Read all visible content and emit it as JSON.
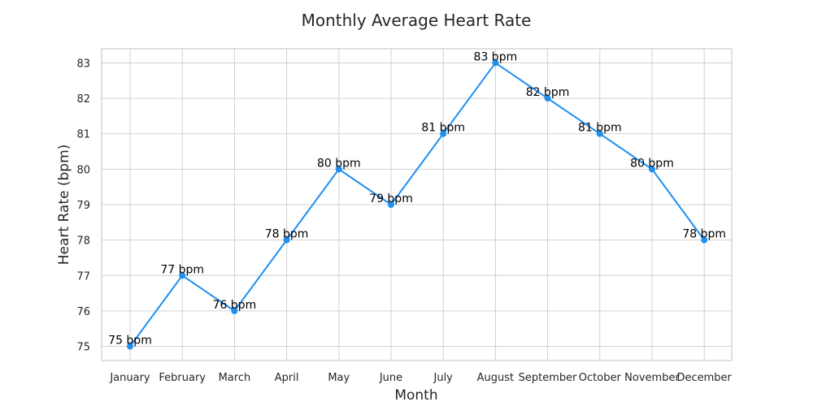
{
  "chart_data": {
    "type": "line",
    "title": "Monthly Average Heart Rate",
    "xlabel": "Month",
    "ylabel": "Heart Rate (bpm)",
    "categories": [
      "January",
      "February",
      "March",
      "April",
      "May",
      "June",
      "July",
      "August",
      "September",
      "October",
      "November",
      "December"
    ],
    "series": [
      {
        "values": [
          75,
          77,
          76,
          78,
          80,
          79,
          81,
          83,
          82,
          81,
          80,
          78
        ],
        "color": "#1f8ff0"
      }
    ],
    "data_labels": [
      "75 bpm",
      "77 bpm",
      "76 bpm",
      "78 bpm",
      "80 bpm",
      "79 bpm",
      "81 bpm",
      "83 bpm",
      "82 bpm",
      "81 bpm",
      "80 bpm",
      "78 bpm"
    ],
    "yticks": [
      75,
      76,
      77,
      78,
      79,
      80,
      81,
      82,
      83
    ],
    "ylim": [
      74.6,
      83.4
    ],
    "grid": true,
    "legend": false
  }
}
